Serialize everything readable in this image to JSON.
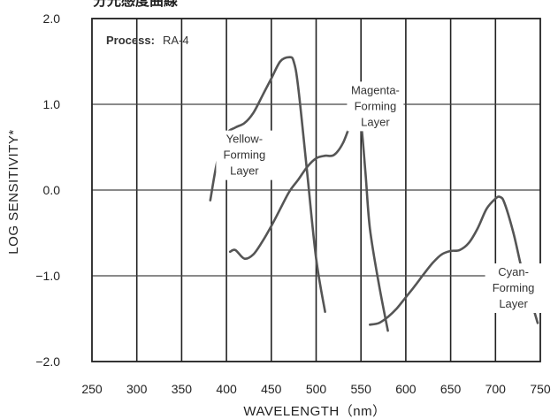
{
  "chart_data": {
    "type": "line",
    "title": "分光感度曲線",
    "xlabel": "WAVELENGTH（nm）",
    "ylabel": "LOG  SENSITIVITY*",
    "xlim": [
      250,
      750
    ],
    "ylim": [
      -2.0,
      2.0
    ],
    "x_ticks": [
      250,
      300,
      350,
      400,
      450,
      500,
      550,
      600,
      650,
      700,
      750
    ],
    "y_ticks": [
      {
        "value": 2.0,
        "label": "2.0"
      },
      {
        "value": 1.0,
        "label": "1.0"
      },
      {
        "value": 0.0,
        "label": "0.0"
      },
      {
        "value": -1.0,
        "label": "−1.0"
      },
      {
        "value": -2.0,
        "label": "−2.0"
      }
    ],
    "grid": true,
    "process_label": "Process:",
    "process_value": "RA-4",
    "series": [
      {
        "name": "Yellow-Forming Layer",
        "label_lines": [
          "Yellow-",
          "Forming",
          "Layer"
        ],
        "label_at": [
          420,
          0.55
        ],
        "x": [
          382,
          390,
          400,
          410,
          420,
          430,
          440,
          450,
          460,
          470,
          475,
          480,
          490,
          500,
          510
        ],
        "y": [
          -0.12,
          0.35,
          0.65,
          0.73,
          0.78,
          0.9,
          1.1,
          1.3,
          1.5,
          1.55,
          1.5,
          1.2,
          0.2,
          -0.8,
          -1.42
        ]
      },
      {
        "name": "Magenta-Forming Layer",
        "label_lines": [
          "Magenta-",
          "Forming",
          "Layer"
        ],
        "label_at": [
          566,
          1.12
        ],
        "x": [
          404,
          410,
          420,
          430,
          440,
          450,
          460,
          470,
          480,
          490,
          500,
          510,
          520,
          530,
          540,
          545,
          550,
          555,
          560,
          570,
          580
        ],
        "y": [
          -0.72,
          -0.7,
          -0.8,
          -0.75,
          -0.6,
          -0.42,
          -0.22,
          -0.02,
          0.12,
          0.27,
          0.37,
          0.4,
          0.41,
          0.55,
          0.82,
          0.9,
          0.78,
          0.2,
          -0.45,
          -1.1,
          -1.64
        ]
      },
      {
        "name": "Cyan-Forming Layer",
        "label_lines": [
          "Cyan-",
          "Forming",
          "Layer"
        ],
        "label_at": [
          720,
          -1.0
        ],
        "x": [
          560,
          570,
          580,
          590,
          600,
          610,
          620,
          630,
          640,
          650,
          660,
          670,
          680,
          690,
          700,
          705,
          710,
          720,
          730,
          740,
          747
        ],
        "y": [
          -1.57,
          -1.55,
          -1.48,
          -1.38,
          -1.25,
          -1.12,
          -0.98,
          -0.85,
          -0.75,
          -0.71,
          -0.7,
          -0.62,
          -0.45,
          -0.22,
          -0.1,
          -0.08,
          -0.15,
          -0.5,
          -0.95,
          -1.3,
          -1.55
        ]
      }
    ]
  }
}
